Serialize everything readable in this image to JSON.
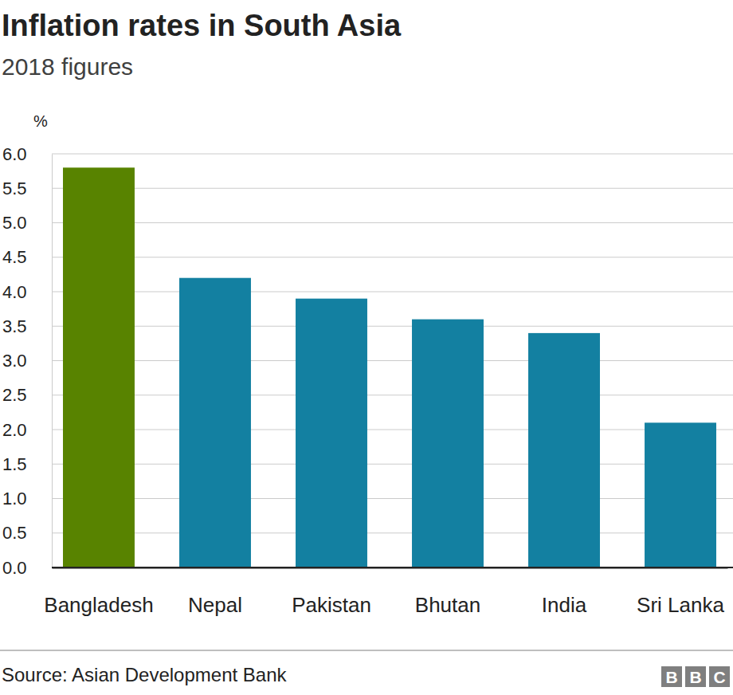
{
  "chart_data": {
    "type": "bar",
    "title": "Inflation rates in South Asia",
    "subtitle": "2018 figures",
    "y_label": "%",
    "source": "Source: Asian Development Bank",
    "logo": "BBC",
    "categories": [
      "Bangladesh",
      "Nepal",
      "Pakistan",
      "Bhutan",
      "India",
      "Sri Lanka"
    ],
    "values": [
      5.8,
      4.2,
      3.9,
      3.6,
      3.4,
      2.1
    ],
    "colors": [
      "#588300",
      "#1380a1",
      "#1380a1",
      "#1380a1",
      "#1380a1",
      "#1380a1"
    ],
    "ylim": [
      0,
      6
    ],
    "yticks": [
      {
        "value": 0,
        "label": "0.0"
      },
      0.5,
      {
        "value": 1,
        "label": "1.0"
      },
      1.5,
      {
        "value": 2,
        "label": "2.0"
      },
      2.5,
      {
        "value": 3,
        "label": "3.0"
      },
      3.5,
      {
        "value": 4,
        "label": "4.0"
      },
      4.5,
      {
        "value": 5,
        "label": "5.0"
      },
      5.5,
      {
        "value": 6,
        "label": "6.0"
      }
    ],
    "grid": true
  }
}
